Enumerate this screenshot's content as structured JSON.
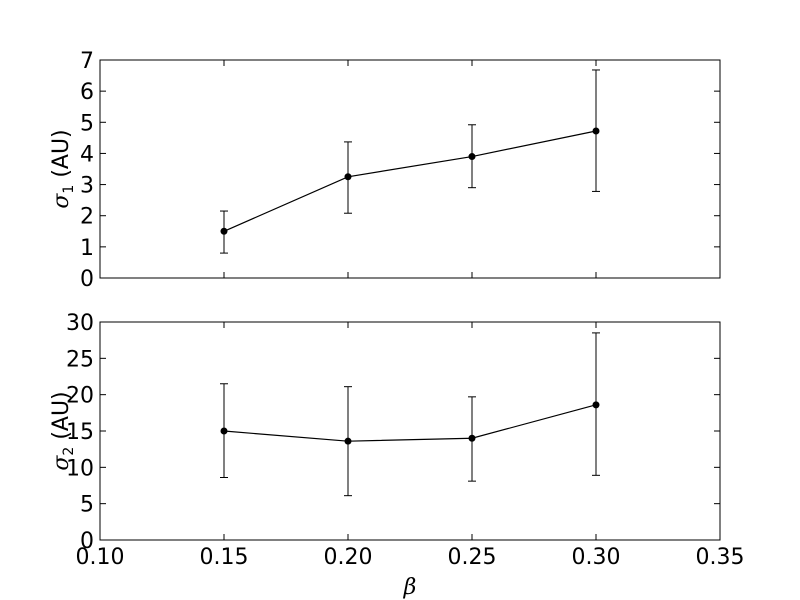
{
  "chart_data": [
    {
      "type": "line",
      "x": [
        0.15,
        0.2,
        0.25,
        0.3
      ],
      "series": [
        {
          "values": [
            1.5,
            3.25,
            3.9,
            4.72
          ],
          "err_low": [
            0.8,
            2.08,
            2.9,
            2.78
          ],
          "err_high": [
            2.15,
            4.37,
            4.92,
            6.68
          ]
        }
      ],
      "xlim": [
        0.1,
        0.35
      ],
      "ylim": [
        0,
        7
      ],
      "xticks": [
        "0.10",
        "0.15",
        "0.20",
        "0.25",
        "0.30",
        "0.35"
      ],
      "show_x_tick_labels": false,
      "yticks": [
        "0",
        "1",
        "2",
        "3",
        "4",
        "5",
        "6",
        "7"
      ],
      "ylabel": {
        "symbol": "σ",
        "sub": "1",
        "unit": "(AU)"
      },
      "xlabel": "",
      "grid": false,
      "color": "#000000"
    },
    {
      "type": "line",
      "x": [
        0.15,
        0.2,
        0.25,
        0.3
      ],
      "series": [
        {
          "values": [
            15.0,
            13.6,
            14.0,
            18.6
          ],
          "err_low": [
            8.6,
            6.1,
            8.1,
            8.9
          ],
          "err_high": [
            21.5,
            21.1,
            19.7,
            28.5
          ]
        }
      ],
      "xlim": [
        0.1,
        0.35
      ],
      "ylim": [
        0,
        30
      ],
      "xticks": [
        "0.10",
        "0.15",
        "0.20",
        "0.25",
        "0.30",
        "0.35"
      ],
      "show_x_tick_labels": true,
      "yticks": [
        "0",
        "5",
        "10",
        "15",
        "20",
        "25",
        "30"
      ],
      "ylabel": {
        "symbol": "σ",
        "sub": "2",
        "unit": "(AU)"
      },
      "xlabel": "β",
      "grid": false,
      "color": "#000000"
    }
  ]
}
